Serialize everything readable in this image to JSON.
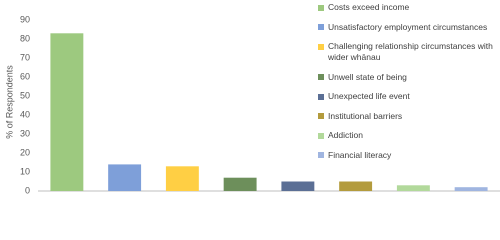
{
  "chart_data": {
    "type": "bar",
    "y_label": "% of Respondents",
    "categories": [
      "Costs exceed income",
      "Unsatisfactory employment circumstances",
      "Challenging relationship circumstances with wider whānau",
      "Unwell state of being",
      "Unexpected life event",
      "Institutional barriers",
      "Addiction",
      "Financial literacy"
    ],
    "values": [
      83,
      14,
      13,
      7,
      5,
      5,
      3,
      2
    ],
    "colors": [
      "#9dc97f",
      "#7e9fd9",
      "#ffcf44",
      "#6d8f5b",
      "#5b6f95",
      "#b39b3d",
      "#b2d99b",
      "#a0b5e0"
    ],
    "ylim": [
      0,
      90
    ],
    "yticks": [
      0,
      10,
      20,
      30,
      40,
      50,
      60,
      70,
      80,
      90
    ],
    "legend": "right"
  }
}
